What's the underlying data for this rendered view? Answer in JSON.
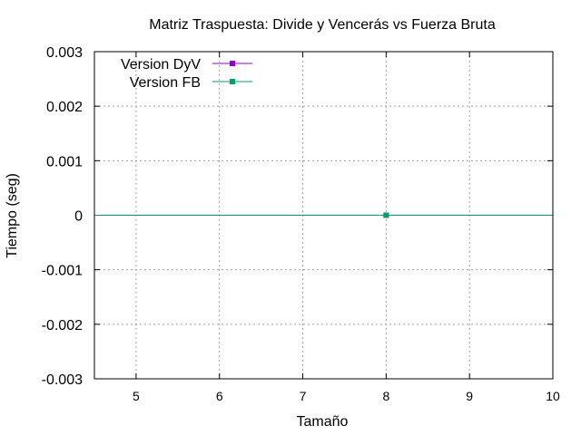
{
  "chart_data": {
    "type": "line",
    "title": "Matriz Traspuesta: Divide y Vencerás vs Fuerza Bruta",
    "xlabel": "Tamaño",
    "ylabel": "Tiempo (seg)",
    "xlim": [
      4.5,
      10
    ],
    "ylim": [
      -0.003,
      0.003
    ],
    "x_ticks": [
      5,
      6,
      7,
      8,
      9,
      10
    ],
    "y_ticks": [
      0.003,
      0.002,
      0.001,
      0,
      -0.001,
      -0.002,
      -0.003
    ],
    "x_tick_labels": [
      "5",
      "6",
      "7",
      "8",
      "9",
      "10"
    ],
    "y_tick_labels": [
      "0.003",
      "0.002",
      "0.001",
      "0",
      "-0.001",
      "-0.002",
      "-0.003"
    ],
    "grid": true,
    "legend_position": "top-left",
    "series": [
      {
        "name": "Version DyV",
        "color": "#9400d3",
        "marker": "square",
        "x": [
          8
        ],
        "y": [
          0
        ]
      },
      {
        "name": "Version FB",
        "color": "#009e73",
        "marker": "square",
        "x": [
          8
        ],
        "y": [
          0
        ]
      }
    ]
  }
}
